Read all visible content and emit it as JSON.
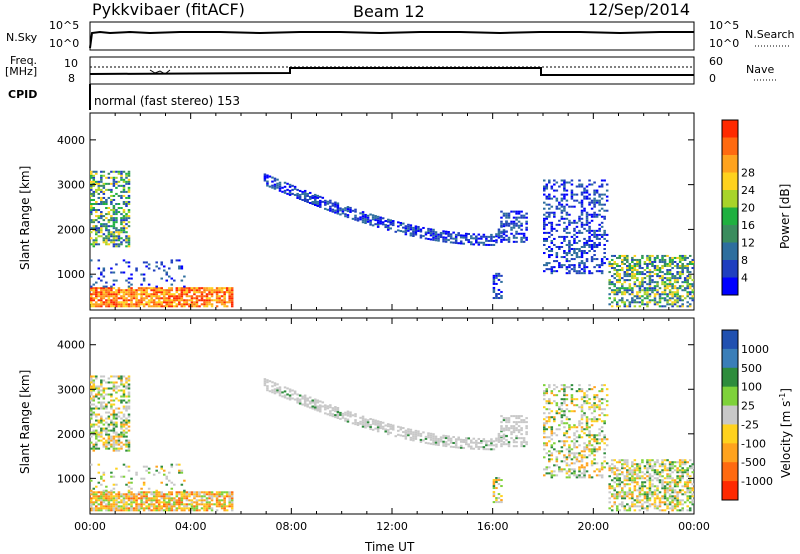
{
  "header": {
    "title": "Pykkvibaer (fitACF)",
    "beam": "Beam 12",
    "date": "12/Sep/2014"
  },
  "top_panels": {
    "nsky_label": "N.Sky",
    "nsky_ticks": [
      "10^5",
      "10^0"
    ],
    "nsearch_label": "N.Search",
    "nsearch_ticks": [
      "10^5",
      "10^0"
    ],
    "freq_label_line1": "Freq.",
    "freq_label_line2": "[MHz]",
    "freq_ticks": [
      "10",
      "8"
    ],
    "nave_label": "Nave",
    "nave_ticks": [
      "60",
      "0"
    ],
    "cpid_label": "CPID",
    "cpid_value": "normal (fast stereo) 153"
  },
  "chart_data": [
    {
      "type": "heatmap",
      "name": "power",
      "ylabel": "Slant Range [km]",
      "xlabel": "",
      "yticks": [
        1000,
        2000,
        3000,
        4000
      ],
      "ylim": [
        200,
        4600
      ],
      "colorbar_label": "Power [dB]",
      "colorbar_ticks": [
        "4",
        "8",
        "12",
        "16",
        "20",
        "24",
        "28"
      ],
      "colorbar_colors": [
        "#0000ff",
        "#1f3fbf",
        "#2e6e9e",
        "#3a8c5e",
        "#1fb040",
        "#a8d42a",
        "#ffd21e",
        "#ffa31e",
        "#ff6a10",
        "#ff2a00"
      ]
    },
    {
      "type": "heatmap",
      "name": "velocity",
      "ylabel": "Slant Range [km]",
      "xlabel": "Time UT",
      "xticks": [
        "00:00",
        "04:00",
        "08:00",
        "12:00",
        "16:00",
        "20:00",
        "00:00"
      ],
      "yticks": [
        1000,
        2000,
        3000,
        4000
      ],
      "ylim": [
        200,
        4600
      ],
      "colorbar_label": "Velocity [m s",
      "colorbar_unit_exp": "-1",
      "colorbar_ticks": [
        "1000",
        "500",
        "100",
        "25",
        "-25",
        "-100",
        "-500",
        "-1000"
      ],
      "colorbar_colors": [
        "#2050b0",
        "#3a7eb8",
        "#2e8c3c",
        "#7ed23a",
        "#c8c8c8",
        "#ffd21e",
        "#ffa31e",
        "#ff6a10",
        "#ff2a00"
      ]
    }
  ]
}
